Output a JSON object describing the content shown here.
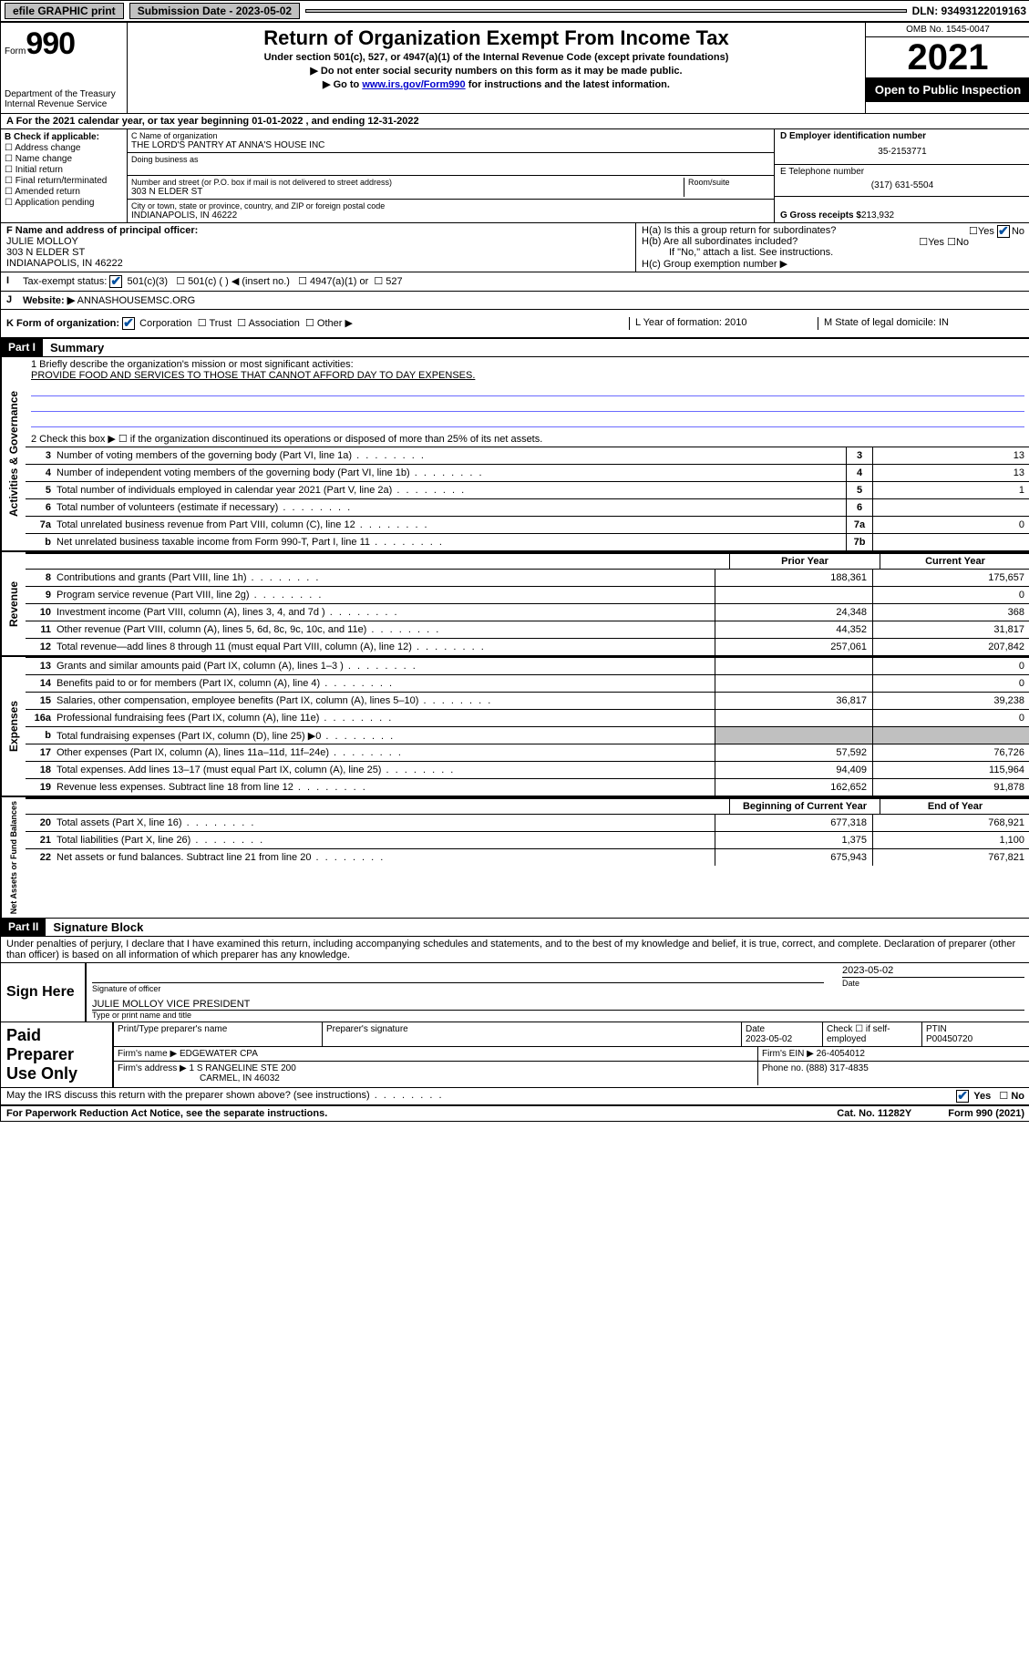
{
  "topbar": {
    "efile": "efile GRAPHIC print",
    "submission_label": "Submission Date - 2023-05-02",
    "dln": "DLN: 93493122019163"
  },
  "header": {
    "form_prefix": "Form",
    "form_number": "990",
    "dept": "Department of the Treasury",
    "irs": "Internal Revenue Service",
    "title": "Return of Organization Exempt From Income Tax",
    "subtitle1": "Under section 501(c), 527, or 4947(a)(1) of the Internal Revenue Code (except private foundations)",
    "subtitle2": "▶ Do not enter social security numbers on this form as it may be made public.",
    "subtitle3_pre": "▶ Go to ",
    "subtitle3_link": "www.irs.gov/Form990",
    "subtitle3_post": " for instructions and the latest information.",
    "omb": "OMB No. 1545-0047",
    "year": "2021",
    "open": "Open to Public Inspection"
  },
  "row_a": "A For the 2021 calendar year, or tax year beginning 01-01-2022    , and ending 12-31-2022",
  "col_b": {
    "title": "B Check if applicable:",
    "items": [
      "Address change",
      "Name change",
      "Initial return",
      "Final return/terminated",
      "Amended return",
      "Application pending"
    ]
  },
  "col_c": {
    "name_label": "C Name of organization",
    "name": "THE LORD'S PANTRY AT ANNA'S HOUSE INC",
    "dba_label": "Doing business as",
    "street_label": "Number and street (or P.O. box if mail is not delivered to street address)",
    "room_label": "Room/suite",
    "street": "303 N ELDER ST",
    "city_label": "City or town, state or province, country, and ZIP or foreign postal code",
    "city": "INDIANAPOLIS, IN  46222"
  },
  "col_d": {
    "ein_label": "D Employer identification number",
    "ein": "35-2153771",
    "phone_label": "E Telephone number",
    "phone": "(317) 631-5504",
    "gross_label": "G Gross receipts $",
    "gross": "213,932"
  },
  "row_f": {
    "label": "F  Name and address of principal officer:",
    "name": "JULIE MOLLOY",
    "street": "303 N ELDER ST",
    "city": "INDIANAPOLIS, IN  46222"
  },
  "row_h": {
    "ha": "H(a)  Is this a group return for subordinates?",
    "hb": "H(b)  Are all subordinates included?",
    "note": "If \"No,\" attach a list. See instructions.",
    "hc": "H(c)  Group exemption number ▶",
    "yes": "Yes",
    "no": "No"
  },
  "row_i": {
    "label": "Tax-exempt status:",
    "o1": "501(c)(3)",
    "o2": "501(c) (  ) ◀ (insert no.)",
    "o3": "4947(a)(1) or",
    "o4": "527"
  },
  "row_j": {
    "label": "Website: ▶",
    "value": "ANNASHOUSEMSC.ORG"
  },
  "row_k": {
    "label": "K Form of organization:",
    "o1": "Corporation",
    "o2": "Trust",
    "o3": "Association",
    "o4": "Other ▶",
    "l": "L Year of formation: 2010",
    "m": "M State of legal domicile: IN"
  },
  "part1": {
    "label": "Part I",
    "title": "Summary"
  },
  "mission": {
    "line1_label": "1   Briefly describe the organization's mission or most significant activities:",
    "text": "PROVIDE FOOD AND SERVICES TO THOSE THAT CANNOT AFFORD DAY TO DAY EXPENSES."
  },
  "check2": "2    Check this box ▶ ☐  if the organization discontinued its operations or disposed of more than 25% of its net assets.",
  "gov_lines": [
    {
      "n": "3",
      "d": "Number of voting members of the governing body (Part VI, line 1a)",
      "b": "3",
      "v": "13"
    },
    {
      "n": "4",
      "d": "Number of independent voting members of the governing body (Part VI, line 1b)",
      "b": "4",
      "v": "13"
    },
    {
      "n": "5",
      "d": "Total number of individuals employed in calendar year 2021 (Part V, line 2a)",
      "b": "5",
      "v": "1"
    },
    {
      "n": "6",
      "d": "Total number of volunteers (estimate if necessary)",
      "b": "6",
      "v": ""
    },
    {
      "n": "7a",
      "d": "Total unrelated business revenue from Part VIII, column (C), line 12",
      "b": "7a",
      "v": "0"
    },
    {
      "n": "b",
      "d": "Net unrelated business taxable income from Form 990-T, Part I, line 11",
      "b": "7b",
      "v": ""
    }
  ],
  "year_headers": {
    "prior": "Prior Year",
    "current": "Current Year",
    "begin": "Beginning of Current Year",
    "end": "End of Year"
  },
  "revenue": [
    {
      "n": "8",
      "d": "Contributions and grants (Part VIII, line 1h)",
      "p": "188,361",
      "c": "175,657"
    },
    {
      "n": "9",
      "d": "Program service revenue (Part VIII, line 2g)",
      "p": "",
      "c": "0"
    },
    {
      "n": "10",
      "d": "Investment income (Part VIII, column (A), lines 3, 4, and 7d )",
      "p": "24,348",
      "c": "368"
    },
    {
      "n": "11",
      "d": "Other revenue (Part VIII, column (A), lines 5, 6d, 8c, 9c, 10c, and 11e)",
      "p": "44,352",
      "c": "31,817"
    },
    {
      "n": "12",
      "d": "Total revenue—add lines 8 through 11 (must equal Part VIII, column (A), line 12)",
      "p": "257,061",
      "c": "207,842"
    }
  ],
  "expenses": [
    {
      "n": "13",
      "d": "Grants and similar amounts paid (Part IX, column (A), lines 1–3 )",
      "p": "",
      "c": "0"
    },
    {
      "n": "14",
      "d": "Benefits paid to or for members (Part IX, column (A), line 4)",
      "p": "",
      "c": "0"
    },
    {
      "n": "15",
      "d": "Salaries, other compensation, employee benefits (Part IX, column (A), lines 5–10)",
      "p": "36,817",
      "c": "39,238"
    },
    {
      "n": "16a",
      "d": "Professional fundraising fees (Part IX, column (A), line 11e)",
      "p": "",
      "c": "0"
    },
    {
      "n": "b",
      "d": "Total fundraising expenses (Part IX, column (D), line 25) ▶0",
      "p": "grey",
      "c": "grey"
    },
    {
      "n": "17",
      "d": "Other expenses (Part IX, column (A), lines 11a–11d, 11f–24e)",
      "p": "57,592",
      "c": "76,726"
    },
    {
      "n": "18",
      "d": "Total expenses. Add lines 13–17 (must equal Part IX, column (A), line 25)",
      "p": "94,409",
      "c": "115,964"
    },
    {
      "n": "19",
      "d": "Revenue less expenses. Subtract line 18 from line 12",
      "p": "162,652",
      "c": "91,878"
    }
  ],
  "net": [
    {
      "n": "20",
      "d": "Total assets (Part X, line 16)",
      "p": "677,318",
      "c": "768,921"
    },
    {
      "n": "21",
      "d": "Total liabilities (Part X, line 26)",
      "p": "1,375",
      "c": "1,100"
    },
    {
      "n": "22",
      "d": "Net assets or fund balances. Subtract line 21 from line 20",
      "p": "675,943",
      "c": "767,821"
    }
  ],
  "part2": {
    "label": "Part II",
    "title": "Signature Block"
  },
  "penalties": "Under penalties of perjury, I declare that I have examined this return, including accompanying schedules and statements, and to the best of my knowledge and belief, it is true, correct, and complete. Declaration of preparer (other than officer) is based on all information of which preparer has any knowledge.",
  "sign": {
    "label": "Sign Here",
    "date": "2023-05-02",
    "sig_label": "Signature of officer",
    "date_label": "Date",
    "typed": "JULIE MOLLOY VICE PRESIDENT",
    "typed_label": "Type or print name and title"
  },
  "prep": {
    "label": "Paid Preparer Use Only",
    "h1": "Print/Type preparer's name",
    "h2": "Preparer's signature",
    "h3": "Date",
    "date": "2023-05-02",
    "h4": "Check ☐ if self-employed",
    "h5": "PTIN",
    "ptin": "P00450720",
    "firm_label": "Firm's name    ▶",
    "firm": "EDGEWATER CPA",
    "ein_label": "Firm's EIN ▶",
    "ein": "26-4054012",
    "addr_label": "Firm's address ▶",
    "addr1": "1 S RANGELINE STE 200",
    "addr2": "CARMEL, IN  46032",
    "phone_label": "Phone no.",
    "phone": "(888) 317-4835"
  },
  "may_irs": "May the IRS discuss this return with the preparer shown above? (see instructions)",
  "footer": {
    "left": "For Paperwork Reduction Act Notice, see the separate instructions.",
    "mid": "Cat. No. 11282Y",
    "right": "Form 990 (2021)"
  },
  "labels": {
    "activities": "Activities & Governance",
    "revenue": "Revenue",
    "expenses": "Expenses",
    "net": "Net Assets or Fund Balances"
  }
}
